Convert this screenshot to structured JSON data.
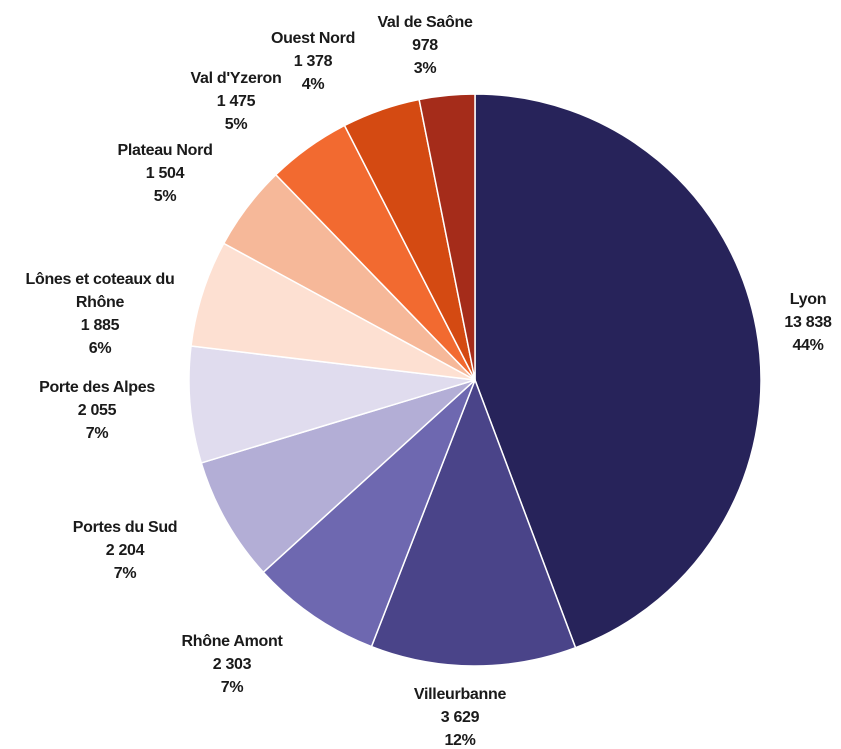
{
  "chart_data": {
    "type": "pie",
    "categories": [
      "Lyon",
      "Villeurbanne",
      "Rhône Amont",
      "Portes du Sud",
      "Porte des Alpes",
      "Lônes et coteaux du Rhône",
      "Plateau Nord",
      "Val d'Yzeron",
      "Ouest Nord",
      "Val de Saône"
    ],
    "values": [
      13838,
      3629,
      2303,
      2204,
      2055,
      1885,
      1504,
      1475,
      1378,
      978
    ],
    "value_labels": [
      "13 838",
      "3 629",
      "2 303",
      "2 204",
      "2 055",
      "1 885",
      "1 504",
      "1 475",
      "1 378",
      "978"
    ],
    "percentages": [
      {
        "value": 44,
        "label": "44%"
      },
      {
        "value": 12,
        "label": "12%"
      },
      {
        "value": 7,
        "label": "7%"
      },
      {
        "value": 7,
        "label": "7%"
      },
      {
        "value": 7,
        "label": "7%"
      },
      {
        "value": 6,
        "label": "6%"
      },
      {
        "value": 5,
        "label": "5%"
      },
      {
        "value": 5,
        "label": "5%"
      },
      {
        "value": 4,
        "label": "4%"
      },
      {
        "value": 3,
        "label": "3%"
      }
    ],
    "colors": [
      "#27235a",
      "#4a4489",
      "#6e68b0",
      "#b3aed6",
      "#e0dcee",
      "#fde0d2",
      "#f6b899",
      "#f26a30",
      "#d44a12",
      "#a52c1a"
    ]
  }
}
